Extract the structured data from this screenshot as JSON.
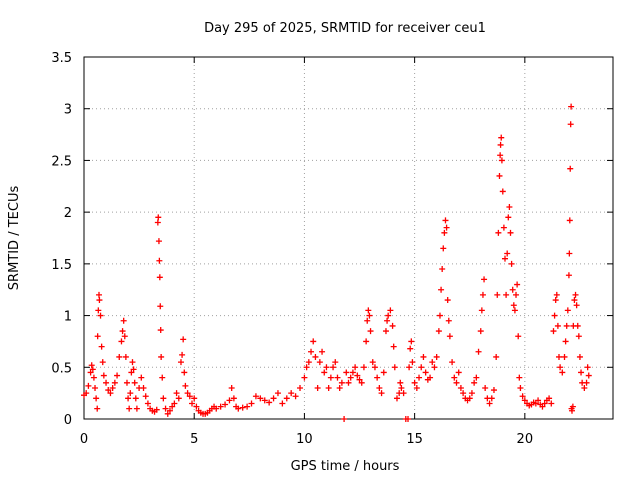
{
  "chart_data": {
    "type": "scatter",
    "title": "Day 295 of 2025, SRMTID for receiver ceu1",
    "xlabel": "GPS time / hours",
    "ylabel": "SRMTID / TECUs",
    "xlim": [
      0,
      24
    ],
    "ylim": [
      0,
      3.5
    ],
    "x_ticks": [
      0,
      5,
      10,
      15,
      20
    ],
    "x_tick_labels": [
      "0",
      "5",
      "10",
      "15",
      "20"
    ],
    "y_ticks": [
      0,
      0.5,
      1,
      1.5,
      2,
      2.5,
      3,
      3.5
    ],
    "y_tick_labels": [
      "0",
      "0.5",
      "1",
      "1.5",
      "2",
      "2.5",
      "3",
      "3.5"
    ],
    "grid": true,
    "legend": "none",
    "marker": "+",
    "color": "#ff0000",
    "series": [
      {
        "name": "ceu1",
        "points": [
          [
            0.0,
            0.23
          ],
          [
            0.1,
            0.25
          ],
          [
            0.2,
            0.32
          ],
          [
            0.3,
            0.45
          ],
          [
            0.35,
            0.52
          ],
          [
            0.4,
            0.48
          ],
          [
            0.45,
            0.4
          ],
          [
            0.5,
            0.3
          ],
          [
            0.55,
            0.2
          ],
          [
            0.6,
            0.1
          ],
          [
            0.62,
            0.8
          ],
          [
            0.65,
            1.05
          ],
          [
            0.68,
            1.2
          ],
          [
            0.7,
            1.15
          ],
          [
            0.75,
            1.0
          ],
          [
            0.8,
            0.7
          ],
          [
            0.85,
            0.55
          ],
          [
            0.9,
            0.42
          ],
          [
            1.0,
            0.35
          ],
          [
            1.1,
            0.28
          ],
          [
            1.2,
            0.25
          ],
          [
            1.3,
            0.3
          ],
          [
            1.4,
            0.35
          ],
          [
            1.5,
            0.42
          ],
          [
            1.6,
            0.6
          ],
          [
            1.7,
            0.75
          ],
          [
            1.75,
            0.85
          ],
          [
            1.8,
            0.95
          ],
          [
            1.85,
            0.8
          ],
          [
            1.9,
            0.6
          ],
          [
            1.95,
            0.35
          ],
          [
            2.0,
            0.2
          ],
          [
            2.05,
            0.1
          ],
          [
            2.1,
            0.25
          ],
          [
            2.15,
            0.45
          ],
          [
            2.2,
            0.55
          ],
          [
            2.25,
            0.48
          ],
          [
            2.3,
            0.35
          ],
          [
            2.35,
            0.2
          ],
          [
            2.4,
            0.1
          ],
          [
            2.5,
            0.3
          ],
          [
            2.6,
            0.4
          ],
          [
            2.7,
            0.3
          ],
          [
            2.8,
            0.22
          ],
          [
            2.9,
            0.15
          ],
          [
            3.0,
            0.1
          ],
          [
            3.1,
            0.08
          ],
          [
            3.2,
            0.07
          ],
          [
            3.3,
            0.09
          ],
          [
            3.35,
            1.9
          ],
          [
            3.37,
            1.95
          ],
          [
            3.4,
            1.72
          ],
          [
            3.42,
            1.53
          ],
          [
            3.44,
            1.37
          ],
          [
            3.46,
            1.09
          ],
          [
            3.48,
            0.86
          ],
          [
            3.5,
            0.6
          ],
          [
            3.55,
            0.4
          ],
          [
            3.6,
            0.2
          ],
          [
            3.7,
            0.1
          ],
          [
            3.8,
            0.05
          ],
          [
            3.9,
            0.08
          ],
          [
            4.0,
            0.12
          ],
          [
            4.1,
            0.15
          ],
          [
            4.2,
            0.25
          ],
          [
            4.3,
            0.2
          ],
          [
            4.4,
            0.55
          ],
          [
            4.45,
            0.62
          ],
          [
            4.5,
            0.77
          ],
          [
            4.55,
            0.45
          ],
          [
            4.6,
            0.32
          ],
          [
            4.7,
            0.25
          ],
          [
            4.8,
            0.22
          ],
          [
            4.9,
            0.15
          ],
          [
            5.0,
            0.2
          ],
          [
            5.1,
            0.12
          ],
          [
            5.2,
            0.08
          ],
          [
            5.3,
            0.06
          ],
          [
            5.4,
            0.05
          ],
          [
            5.5,
            0.05
          ],
          [
            5.6,
            0.06
          ],
          [
            5.7,
            0.08
          ],
          [
            5.8,
            0.1
          ],
          [
            5.9,
            0.12
          ],
          [
            6.0,
            0.1
          ],
          [
            6.2,
            0.12
          ],
          [
            6.4,
            0.14
          ],
          [
            6.6,
            0.18
          ],
          [
            6.7,
            0.3
          ],
          [
            6.8,
            0.2
          ],
          [
            6.9,
            0.12
          ],
          [
            7.0,
            0.1
          ],
          [
            7.2,
            0.11
          ],
          [
            7.4,
            0.12
          ],
          [
            7.6,
            0.15
          ],
          [
            7.8,
            0.22
          ],
          [
            8.0,
            0.2
          ],
          [
            8.2,
            0.18
          ],
          [
            8.4,
            0.16
          ],
          [
            8.6,
            0.2
          ],
          [
            8.8,
            0.25
          ],
          [
            9.0,
            0.15
          ],
          [
            9.2,
            0.2
          ],
          [
            9.4,
            0.25
          ],
          [
            9.6,
            0.22
          ],
          [
            9.8,
            0.3
          ],
          [
            10.0,
            0.4
          ],
          [
            10.1,
            0.5
          ],
          [
            10.2,
            0.55
          ],
          [
            10.3,
            0.65
          ],
          [
            10.4,
            0.75
          ],
          [
            10.5,
            0.6
          ],
          [
            10.6,
            0.3
          ],
          [
            10.7,
            0.55
          ],
          [
            10.8,
            0.65
          ],
          [
            10.9,
            0.45
          ],
          [
            11.0,
            0.5
          ],
          [
            11.1,
            0.3
          ],
          [
            11.2,
            0.4
          ],
          [
            11.3,
            0.5
          ],
          [
            11.4,
            0.55
          ],
          [
            11.5,
            0.4
          ],
          [
            11.6,
            0.3
          ],
          [
            11.7,
            0.35
          ],
          [
            11.8,
            0.0
          ],
          [
            11.9,
            0.45
          ],
          [
            12.0,
            0.35
          ],
          [
            12.1,
            0.4
          ],
          [
            12.2,
            0.45
          ],
          [
            12.3,
            0.5
          ],
          [
            12.4,
            0.42
          ],
          [
            12.5,
            0.38
          ],
          [
            12.6,
            0.35
          ],
          [
            12.7,
            0.5
          ],
          [
            12.8,
            0.75
          ],
          [
            12.85,
            0.95
          ],
          [
            12.9,
            1.05
          ],
          [
            12.95,
            1.0
          ],
          [
            13.0,
            0.85
          ],
          [
            13.1,
            0.55
          ],
          [
            13.2,
            0.5
          ],
          [
            13.3,
            0.4
          ],
          [
            13.4,
            0.3
          ],
          [
            13.5,
            0.25
          ],
          [
            13.6,
            0.45
          ],
          [
            13.7,
            0.85
          ],
          [
            13.75,
            0.95
          ],
          [
            13.8,
            1.0
          ],
          [
            13.9,
            1.05
          ],
          [
            14.0,
            0.9
          ],
          [
            14.05,
            0.7
          ],
          [
            14.1,
            0.5
          ],
          [
            14.2,
            0.2
          ],
          [
            14.3,
            0.25
          ],
          [
            14.35,
            0.35
          ],
          [
            14.4,
            0.3
          ],
          [
            14.5,
            0.25
          ],
          [
            14.6,
            0.0
          ],
          [
            14.7,
            0.0
          ],
          [
            14.75,
            0.5
          ],
          [
            14.8,
            0.68
          ],
          [
            14.85,
            0.75
          ],
          [
            14.9,
            0.55
          ],
          [
            15.0,
            0.35
          ],
          [
            15.1,
            0.3
          ],
          [
            15.2,
            0.4
          ],
          [
            15.3,
            0.5
          ],
          [
            15.4,
            0.6
          ],
          [
            15.5,
            0.45
          ],
          [
            15.6,
            0.38
          ],
          [
            15.7,
            0.4
          ],
          [
            15.8,
            0.55
          ],
          [
            15.9,
            0.5
          ],
          [
            16.0,
            0.6
          ],
          [
            16.1,
            0.85
          ],
          [
            16.15,
            1.0
          ],
          [
            16.2,
            1.25
          ],
          [
            16.25,
            1.45
          ],
          [
            16.3,
            1.65
          ],
          [
            16.35,
            1.8
          ],
          [
            16.4,
            1.92
          ],
          [
            16.45,
            1.85
          ],
          [
            16.5,
            1.15
          ],
          [
            16.55,
            0.95
          ],
          [
            16.6,
            0.8
          ],
          [
            16.7,
            0.55
          ],
          [
            16.8,
            0.4
          ],
          [
            16.9,
            0.35
          ],
          [
            17.0,
            0.45
          ],
          [
            17.1,
            0.3
          ],
          [
            17.2,
            0.25
          ],
          [
            17.3,
            0.2
          ],
          [
            17.4,
            0.18
          ],
          [
            17.5,
            0.2
          ],
          [
            17.6,
            0.25
          ],
          [
            17.7,
            0.35
          ],
          [
            17.8,
            0.4
          ],
          [
            17.9,
            0.65
          ],
          [
            18.0,
            0.85
          ],
          [
            18.05,
            1.05
          ],
          [
            18.1,
            1.2
          ],
          [
            18.15,
            1.35
          ],
          [
            18.2,
            0.3
          ],
          [
            18.3,
            0.2
          ],
          [
            18.4,
            0.15
          ],
          [
            18.5,
            0.2
          ],
          [
            18.6,
            0.28
          ],
          [
            18.7,
            0.6
          ],
          [
            18.75,
            1.2
          ],
          [
            18.8,
            1.8
          ],
          [
            18.85,
            2.35
          ],
          [
            18.88,
            2.55
          ],
          [
            18.9,
            2.65
          ],
          [
            18.93,
            2.72
          ],
          [
            18.96,
            2.5
          ],
          [
            19.0,
            2.2
          ],
          [
            19.05,
            1.85
          ],
          [
            19.1,
            1.55
          ],
          [
            19.15,
            1.2
          ],
          [
            19.2,
            1.6
          ],
          [
            19.25,
            1.95
          ],
          [
            19.3,
            2.05
          ],
          [
            19.35,
            1.8
          ],
          [
            19.4,
            1.5
          ],
          [
            19.45,
            1.25
          ],
          [
            19.5,
            1.1
          ],
          [
            19.55,
            1.05
          ],
          [
            19.6,
            1.2
          ],
          [
            19.65,
            1.3
          ],
          [
            19.7,
            0.8
          ],
          [
            19.75,
            0.4
          ],
          [
            19.8,
            0.3
          ],
          [
            19.9,
            0.22
          ],
          [
            20.0,
            0.18
          ],
          [
            20.1,
            0.15
          ],
          [
            20.2,
            0.13
          ],
          [
            20.3,
            0.14
          ],
          [
            20.4,
            0.16
          ],
          [
            20.5,
            0.15
          ],
          [
            20.6,
            0.18
          ],
          [
            20.7,
            0.14
          ],
          [
            20.8,
            0.12
          ],
          [
            20.9,
            0.15
          ],
          [
            21.0,
            0.18
          ],
          [
            21.1,
            0.2
          ],
          [
            21.2,
            0.15
          ],
          [
            21.3,
            0.85
          ],
          [
            21.35,
            1.0
          ],
          [
            21.4,
            1.15
          ],
          [
            21.45,
            1.2
          ],
          [
            21.5,
            0.9
          ],
          [
            21.55,
            0.6
          ],
          [
            21.6,
            0.5
          ],
          [
            21.7,
            0.45
          ],
          [
            21.8,
            0.6
          ],
          [
            21.85,
            0.75
          ],
          [
            21.9,
            0.9
          ],
          [
            21.95,
            1.05
          ],
          [
            22.0,
            1.39
          ],
          [
            22.02,
            1.6
          ],
          [
            22.04,
            1.92
          ],
          [
            22.06,
            2.42
          ],
          [
            22.08,
            2.85
          ],
          [
            22.1,
            3.02
          ],
          [
            22.12,
            0.1
          ],
          [
            22.14,
            0.08
          ],
          [
            22.18,
            0.12
          ],
          [
            22.2,
            0.9
          ],
          [
            22.25,
            1.15
          ],
          [
            22.3,
            1.2
          ],
          [
            22.35,
            1.1
          ],
          [
            22.4,
            0.9
          ],
          [
            22.45,
            0.8
          ],
          [
            22.5,
            0.6
          ],
          [
            22.55,
            0.45
          ],
          [
            22.6,
            0.35
          ],
          [
            22.7,
            0.3
          ],
          [
            22.8,
            0.35
          ],
          [
            22.85,
            0.5
          ],
          [
            22.9,
            0.42
          ]
        ]
      }
    ]
  }
}
